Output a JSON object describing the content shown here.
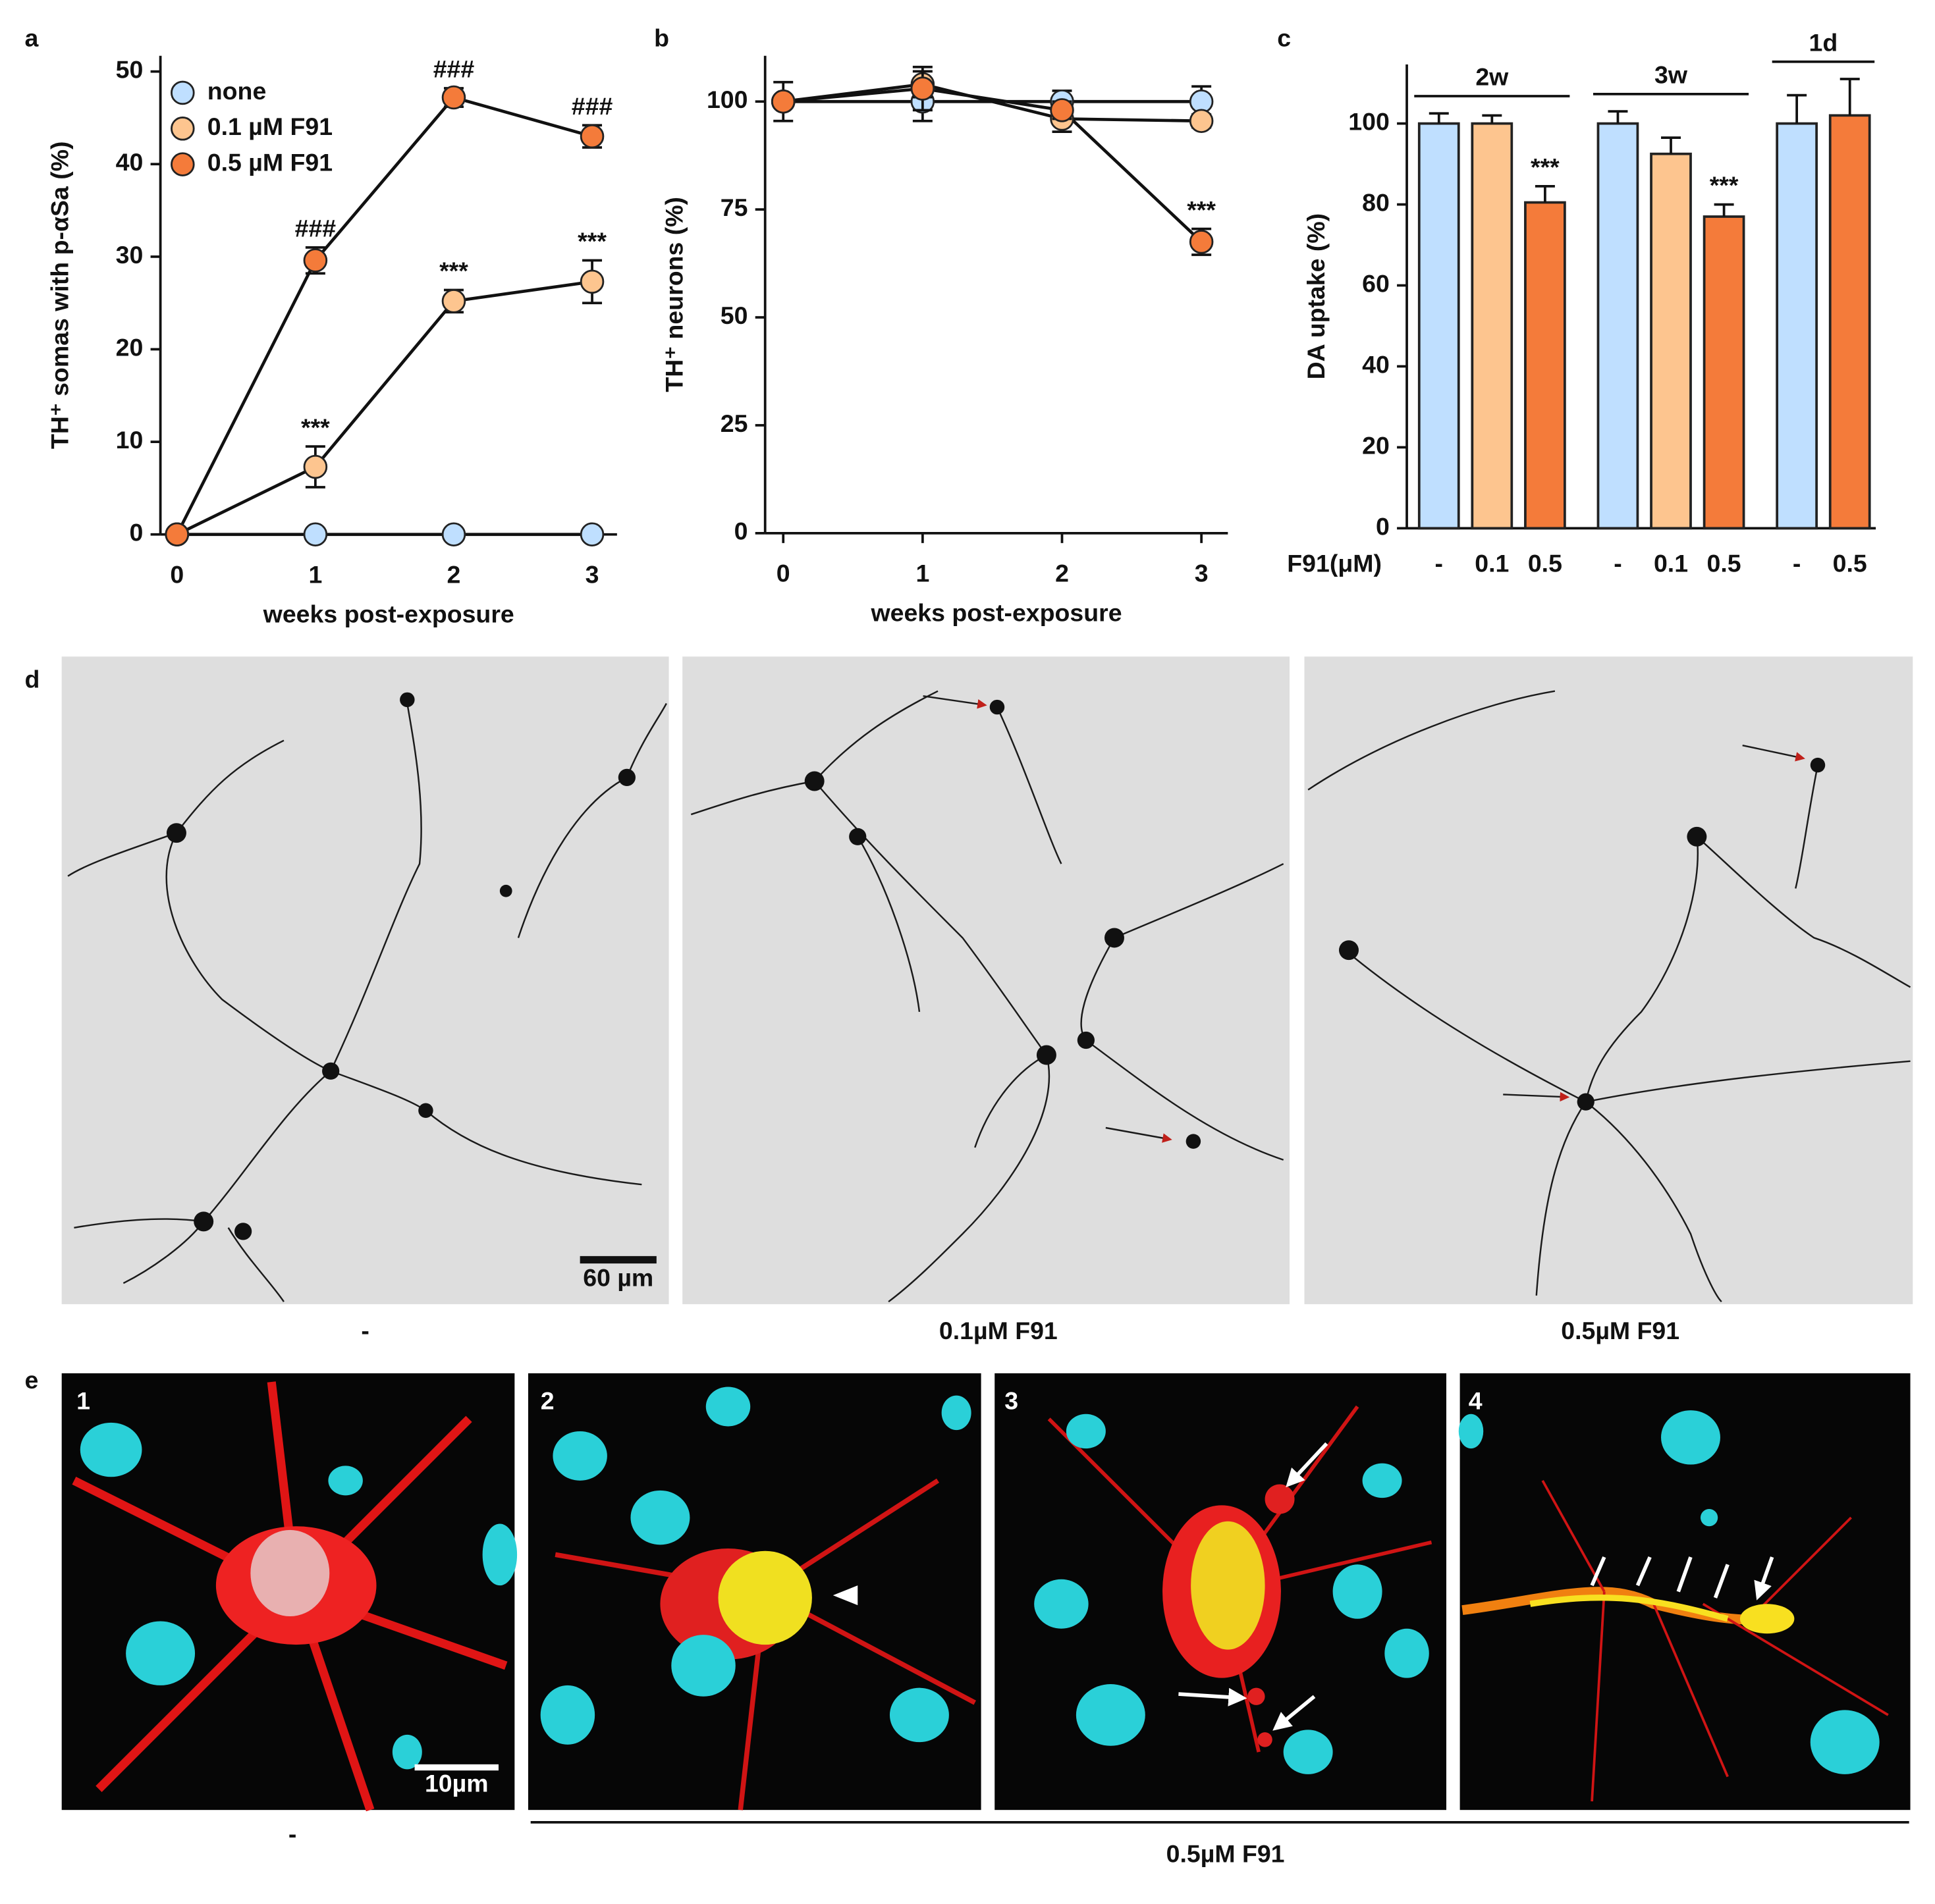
{
  "chart_data": [
    {
      "panel": "a",
      "type": "line",
      "x": [
        0,
        1,
        2,
        3
      ],
      "xlim": [
        -0.12,
        3.18
      ],
      "xticks": [
        0,
        1,
        2,
        3
      ],
      "ylim": [
        0,
        51.7
      ],
      "yticks": [
        0,
        10,
        20,
        30,
        40,
        50
      ],
      "xlabel": "weeks post-exposure",
      "ylabel": "TH⁺ somas with p-αSa (%)",
      "legend": "upper left",
      "series": [
        {
          "name": "none",
          "color": "#bfdfff",
          "values": [
            0,
            0,
            0,
            0
          ],
          "errors": [
            0,
            0,
            0,
            0
          ],
          "significance": [
            null,
            null,
            null,
            null
          ]
        },
        {
          "name": "0.1 µM F91",
          "color": "#fdc58f",
          "values": [
            0,
            7.3,
            25.2,
            27.3
          ],
          "errors": [
            0,
            2.2,
            1.2,
            2.3
          ],
          "significance": [
            null,
            "***",
            "***",
            "***"
          ]
        },
        {
          "name": "0.5 µM F91",
          "color": "#f47b3a",
          "values": [
            0,
            29.6,
            47.2,
            43.0
          ],
          "errors": [
            0,
            1.4,
            1.0,
            1.2
          ],
          "significance": [
            null,
            "###",
            "###",
            "###"
          ]
        }
      ]
    },
    {
      "panel": "b",
      "type": "line",
      "x": [
        0,
        1,
        2,
        3
      ],
      "xlim": [
        -0.13,
        3.19
      ],
      "xticks": [
        0,
        1,
        2,
        3
      ],
      "ylim": [
        0,
        110.6
      ],
      "yticks": [
        0,
        25,
        50,
        75,
        100
      ],
      "xlabel": "weeks post-exposure",
      "ylabel": "TH⁺ neurons  (%)",
      "series": [
        {
          "color": "#bfdfff",
          "values": [
            100,
            100,
            100,
            100
          ],
          "errors": [
            4.5,
            4.5,
            2.5,
            3.5
          ],
          "significance": [
            null,
            null,
            null,
            null
          ]
        },
        {
          "color": "#fdc58f",
          "values": [
            100,
            104,
            96,
            95.5
          ],
          "errors": [
            0,
            3,
            3,
            1.5
          ],
          "significance": [
            null,
            null,
            null,
            null
          ]
        },
        {
          "color": "#f47b3a",
          "values": [
            100,
            103,
            98,
            67.5
          ],
          "errors": [
            0,
            5,
            2,
            3
          ],
          "significance": [
            null,
            null,
            null,
            "***"
          ]
        }
      ]
    },
    {
      "panel": "c",
      "type": "bar",
      "ylim": [
        0,
        114.6
      ],
      "yticks": [
        0,
        20,
        40,
        60,
        80,
        100
      ],
      "ylabel": "DA uptake (%)",
      "xlabel": "F91(μM)",
      "groups": [
        {
          "label": "2w",
          "categories": [
            "-",
            "0.1",
            "0.5"
          ],
          "values": [
            100,
            100,
            80.5
          ],
          "errors": [
            2.5,
            2,
            4
          ],
          "colors": [
            "#bfdfff",
            "#fdc58f",
            "#f47b3a"
          ],
          "significance": [
            null,
            null,
            "***"
          ]
        },
        {
          "label": "3w",
          "categories": [
            "-",
            "0.1",
            "0.5"
          ],
          "values": [
            100,
            92.5,
            77
          ],
          "errors": [
            3,
            4,
            3
          ],
          "colors": [
            "#bfdfff",
            "#fdc58f",
            "#f47b3a"
          ],
          "significance": [
            null,
            null,
            "***"
          ]
        },
        {
          "label": "1d",
          "categories": [
            "-",
            "0.5"
          ],
          "values": [
            100,
            102
          ],
          "errors": [
            7,
            9
          ],
          "colors": [
            "#bfdfff",
            "#f47b3a"
          ],
          "significance": [
            null,
            null
          ]
        }
      ]
    }
  ],
  "panel_d": {
    "label": "d",
    "captions": [
      "-",
      "0.1µM F91",
      "0.5µM F91"
    ],
    "scale_bar": "60 µm"
  },
  "panel_e": {
    "label": "e",
    "image_numbers": [
      "1",
      "2",
      "3",
      "4"
    ],
    "scale_bar": "10µm",
    "captions": [
      "-",
      "0.5µM F91"
    ]
  }
}
